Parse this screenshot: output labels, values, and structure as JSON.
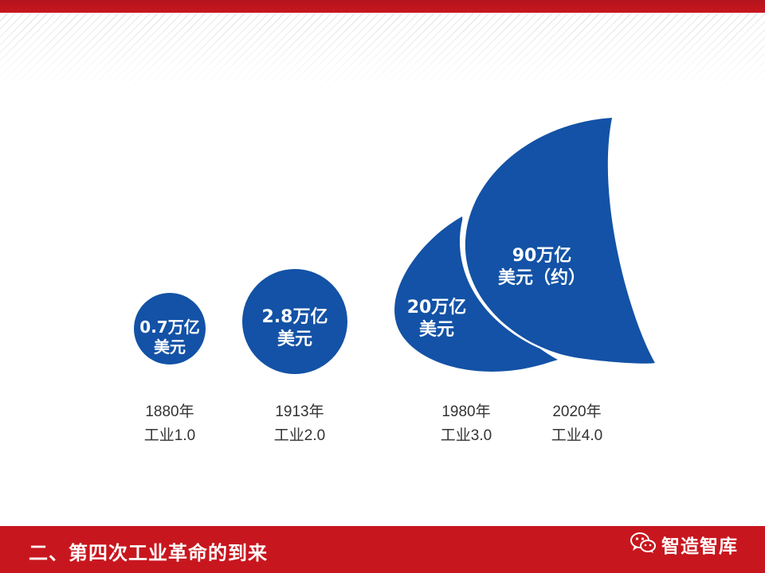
{
  "colors": {
    "accent": "#c8161e",
    "bubble": "#1352a6"
  },
  "bubbles": [
    {
      "line1": "0.7万亿",
      "line2": "美元"
    },
    {
      "line1": "2.8万亿",
      "line2": "美元"
    },
    {
      "line1": "20万亿",
      "line2": "美元"
    },
    {
      "line1": "90万亿",
      "line2": "美元（约）"
    }
  ],
  "eras": [
    {
      "year": "1880年",
      "label": "工业1.0"
    },
    {
      "year": "1913年",
      "label": "工业2.0"
    },
    {
      "year": "1980年",
      "label": "工业3.0"
    },
    {
      "year": "2020年",
      "label": "工业4.0"
    }
  ],
  "footer": {
    "title": "二、第四次工业革命的到来",
    "brand": "智造智库",
    "brand_icon": "wechat-icon"
  }
}
